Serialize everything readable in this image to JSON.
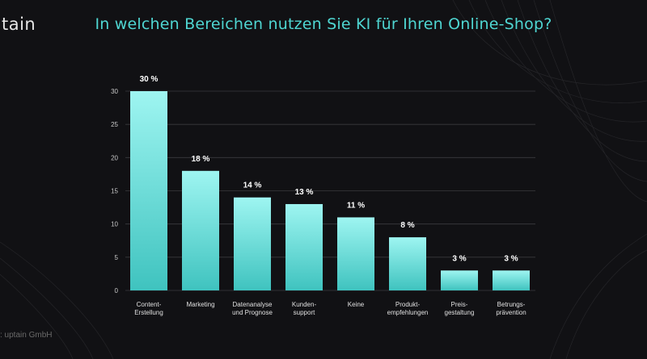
{
  "header": {
    "logo_text": "tain",
    "title": "In welchen Bereichen nutzen Sie KI für Ihren Online-Shop?"
  },
  "footer": {
    "source": ":  uptain GmbH"
  },
  "colors": {
    "background": "#111114",
    "bar_top": "#9ef5f1",
    "bar_bottom": "#3fc3bf",
    "title": "#4fd6d2",
    "grid": "#3a3a3e"
  },
  "chart_data": {
    "type": "bar",
    "title": "In welchen Bereichen nutzen Sie KI für Ihren Online-Shop?",
    "xlabel": "",
    "ylabel": "",
    "ylim": [
      0,
      30
    ],
    "yticks": [
      0,
      5,
      10,
      15,
      20,
      25,
      30
    ],
    "grid": true,
    "categories": [
      [
        "Content-",
        "Erstellung"
      ],
      [
        "Marketing"
      ],
      [
        "Datenanalyse",
        "und Prognose"
      ],
      [
        "Kunden-",
        "support"
      ],
      [
        "Keine"
      ],
      [
        "Produkt-",
        "empfehlungen"
      ],
      [
        "Preis-",
        "gestaltung"
      ],
      [
        "Betrungs-",
        "prävention"
      ]
    ],
    "values": [
      30,
      18,
      14,
      13,
      11,
      8,
      3,
      3
    ],
    "value_labels": [
      "30 %",
      "18 %",
      "14 %",
      "13 %",
      "11 %",
      "8 %",
      "3 %",
      "3 %"
    ]
  }
}
